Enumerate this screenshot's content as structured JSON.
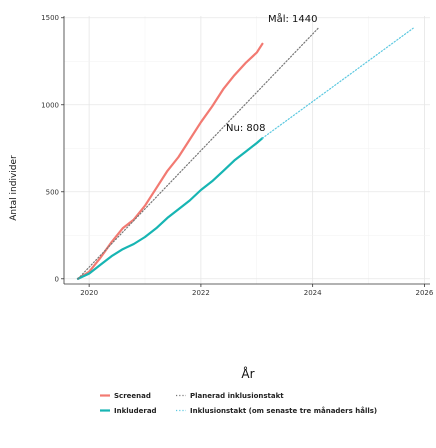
{
  "chart_data": {
    "type": "line",
    "title": "",
    "xlabel": "År",
    "ylabel": "Antal individer",
    "xlim": [
      2019.55,
      2026.1
    ],
    "ylim": [
      -30,
      1510
    ],
    "x_ticks": [
      2020,
      2022,
      2024,
      2026
    ],
    "y_ticks": [
      0,
      500,
      1000,
      1500
    ],
    "grid": true,
    "legend_position": "bottom",
    "colors": {
      "screened": "#f27a72",
      "included": "#17b5b3",
      "planned": "#777777",
      "projected": "#5bc8e0"
    },
    "series": [
      {
        "name": "Screenad",
        "style": "solid",
        "x": [
          2019.8,
          2020.0,
          2020.2,
          2020.4,
          2020.6,
          2020.8,
          2021.0,
          2021.2,
          2021.4,
          2021.6,
          2021.8,
          2022.0,
          2022.2,
          2022.4,
          2022.6,
          2022.8,
          2023.0,
          2023.1
        ],
        "y": [
          0,
          40,
          120,
          210,
          290,
          340,
          420,
          520,
          620,
          700,
          800,
          900,
          990,
          1090,
          1170,
          1240,
          1300,
          1350
        ]
      },
      {
        "name": "Inkluderad",
        "style": "solid",
        "x": [
          2019.8,
          2020.0,
          2020.2,
          2020.4,
          2020.6,
          2020.8,
          2021.0,
          2021.2,
          2021.4,
          2021.6,
          2021.8,
          2022.0,
          2022.2,
          2022.4,
          2022.6,
          2022.8,
          2023.0,
          2023.1
        ],
        "y": [
          0,
          30,
          80,
          130,
          170,
          200,
          240,
          290,
          350,
          400,
          450,
          510,
          560,
          620,
          680,
          730,
          780,
          808
        ]
      },
      {
        "name": "Planerad inklusionstakt",
        "style": "dotted",
        "x": [
          2019.8,
          2024.1
        ],
        "y": [
          0,
          1440
        ]
      },
      {
        "name": "Inklusionstakt (om senaste tre månaders hålls)",
        "style": "dotted",
        "x": [
          2023.1,
          2025.8
        ],
        "y": [
          808,
          1440
        ]
      }
    ],
    "annotations": [
      {
        "text": "Mål: 1440",
        "x": 2023.2,
        "y": 1475
      },
      {
        "text": "Nu: 808",
        "x": 2022.45,
        "y": 850
      }
    ]
  }
}
